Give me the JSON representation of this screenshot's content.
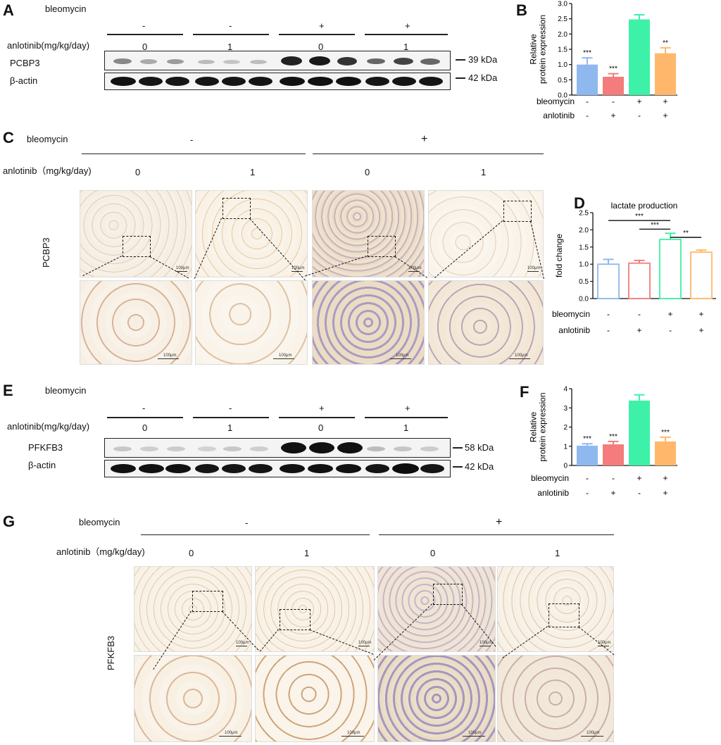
{
  "panels": {
    "A": "A",
    "B": "B",
    "C": "C",
    "D": "D",
    "E": "E",
    "F": "F",
    "G": "G"
  },
  "panel_a": {
    "bleo_label": "bleomycin",
    "anl_label": "anlotinib(mg/kg/day)",
    "bleo_signs": [
      "-",
      "-",
      "+",
      "+"
    ],
    "doses": [
      "0",
      "1",
      "0",
      "1"
    ],
    "protein": "PCBP3",
    "control": "β-actin",
    "protein_kda": "39 kDa",
    "control_kda": "42 kDa"
  },
  "panel_c": {
    "bleo_label": "bleomycin",
    "anl_label": "anlotinib（mg/kg/day)",
    "bleo_signs": [
      "-",
      "+"
    ],
    "doses": [
      "0",
      "1",
      "0",
      "1"
    ],
    "stain": "PCBP3",
    "scale_text": "100μm"
  },
  "panel_e": {
    "bleo_label": "bleomycin",
    "anl_label": "anlotinib(mg/kg/day)",
    "bleo_signs": [
      "-",
      "-",
      "+",
      "+"
    ],
    "doses": [
      "0",
      "1",
      "0",
      "1"
    ],
    "protein": "PFKFB3",
    "control": "β-actin",
    "protein_kda": "58 kDa",
    "control_kda": "42 kDa"
  },
  "panel_g": {
    "bleo_label": "bleomycin",
    "anl_label": "anlotinib（mg/kg/day)",
    "bleo_signs": [
      "-",
      "+"
    ],
    "doses": [
      "0",
      "1",
      "0",
      "1"
    ],
    "stain": "PFKFB3",
    "scale_text": "100μm"
  },
  "colors": {
    "blue": "#8fb8ee",
    "red": "#f47c7c",
    "green": "#3df2a8",
    "orange": "#ffb86b"
  },
  "chart_data": [
    {
      "id": "B",
      "type": "bar",
      "ylabel": "Relative\nprotein expression",
      "ylim": [
        0,
        3.0
      ],
      "yticks": [
        "0.0",
        "0.5",
        "1.0",
        "1.5",
        "2.0",
        "2.5",
        "3.0"
      ],
      "values": [
        1.0,
        0.6,
        2.48,
        1.37
      ],
      "errors": [
        0.22,
        0.1,
        0.15,
        0.18
      ],
      "sig": [
        "***",
        "***",
        "",
        "**"
      ],
      "filled": true,
      "row_labels": [
        "bleomycin",
        "anlotinib"
      ],
      "bleomycin": [
        "-",
        "-",
        "+",
        "+"
      ],
      "anlotinib": [
        "-",
        "+",
        "-",
        "+"
      ]
    },
    {
      "id": "D",
      "type": "bar",
      "title": "lactate production",
      "ylabel": "fold change",
      "ylim": [
        0,
        2.5
      ],
      "yticks": [
        "0.0",
        "0.5",
        "1.0",
        "1.5",
        "2.0",
        "2.5"
      ],
      "values": [
        1.0,
        1.03,
        1.72,
        1.35
      ],
      "errors": [
        0.14,
        0.08,
        0.18,
        0.06
      ],
      "filled": false,
      "brackets": [
        {
          "from": 0,
          "to": 2,
          "y": 2.27,
          "label": "***"
        },
        {
          "from": 1,
          "to": 2,
          "y": 2.02,
          "label": "***"
        },
        {
          "from": 2,
          "to": 3,
          "y": 1.78,
          "label": "**"
        }
      ],
      "row_labels": [
        "bleomycin",
        "anlotinib"
      ],
      "bleomycin": [
        "-",
        "-",
        "+",
        "+"
      ],
      "anlotinib": [
        "-",
        "+",
        "-",
        "+"
      ]
    },
    {
      "id": "F",
      "type": "bar",
      "ylabel": "Relative\nprotein expression",
      "ylim": [
        0,
        4
      ],
      "yticks": [
        "0",
        "1",
        "2",
        "3",
        "4"
      ],
      "values": [
        1.03,
        1.1,
        3.38,
        1.25
      ],
      "errors": [
        0.1,
        0.15,
        0.3,
        0.22
      ],
      "sig": [
        "***",
        "***",
        "",
        "***"
      ],
      "filled": true,
      "row_labels": [
        "bleomycin",
        "anlotinib"
      ],
      "bleomycin": [
        "-",
        "-",
        "+",
        "+"
      ],
      "anlotinib": [
        "-",
        "+",
        "-",
        "+"
      ]
    }
  ]
}
